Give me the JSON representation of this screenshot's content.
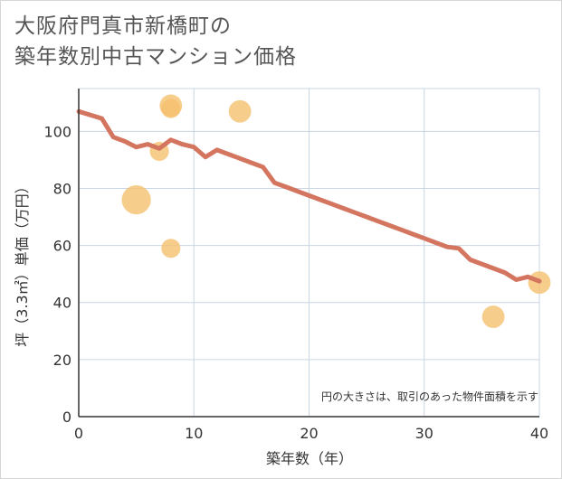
{
  "title_line1": "大阪府門真市新橋町の",
  "title_line2": "築年数別中古マンション価格",
  "chart_data": {
    "type": "scatter",
    "title": "大阪府門真市新橋町の築年数別中古マンション価格",
    "xlabel": "築年数（年）",
    "ylabel": "坪（3.3㎡）単価（万円）",
    "xlim": [
      0,
      40
    ],
    "ylim": [
      0,
      115
    ],
    "xticks": [
      0,
      10,
      20,
      30,
      40
    ],
    "yticks": [
      0,
      20,
      40,
      60,
      80,
      100
    ],
    "grid": true,
    "note": "円の大きさは、取引のあった物件面積を示す",
    "colors": {
      "bubble": "#f5c06f",
      "line": "#d47560",
      "grid": "#c9d6e3"
    },
    "bubbles": [
      {
        "x": 5,
        "y": 76,
        "size": 3
      },
      {
        "x": 7,
        "y": 93,
        "size": 1.5
      },
      {
        "x": 8,
        "y": 109,
        "size": 2
      },
      {
        "x": 8,
        "y": 108,
        "size": 1.5
      },
      {
        "x": 8,
        "y": 59,
        "size": 1.5
      },
      {
        "x": 14,
        "y": 107,
        "size": 2
      },
      {
        "x": 36,
        "y": 35,
        "size": 2
      },
      {
        "x": 40,
        "y": 47,
        "size": 2
      }
    ],
    "trend_line": {
      "x": [
        0,
        2,
        3,
        4,
        5,
        6,
        7,
        8,
        9,
        10,
        11,
        12,
        13,
        14,
        15,
        16,
        17,
        18,
        19,
        20,
        21,
        22,
        23,
        24,
        25,
        26,
        27,
        28,
        29,
        30,
        31,
        32,
        33,
        34,
        35,
        36,
        37,
        38,
        39,
        40
      ],
      "y": [
        107,
        104.5,
        98,
        96.5,
        94.5,
        95.5,
        94,
        97,
        95.5,
        94.5,
        91,
        93.5,
        92,
        90.5,
        89,
        87.5,
        82,
        80.5,
        79,
        77.5,
        76,
        74.5,
        73,
        71.5,
        70,
        68.5,
        67,
        65.5,
        64,
        62.5,
        61,
        59.5,
        59,
        55,
        53.5,
        52,
        50.5,
        48,
        49,
        47.5
      ]
    }
  }
}
